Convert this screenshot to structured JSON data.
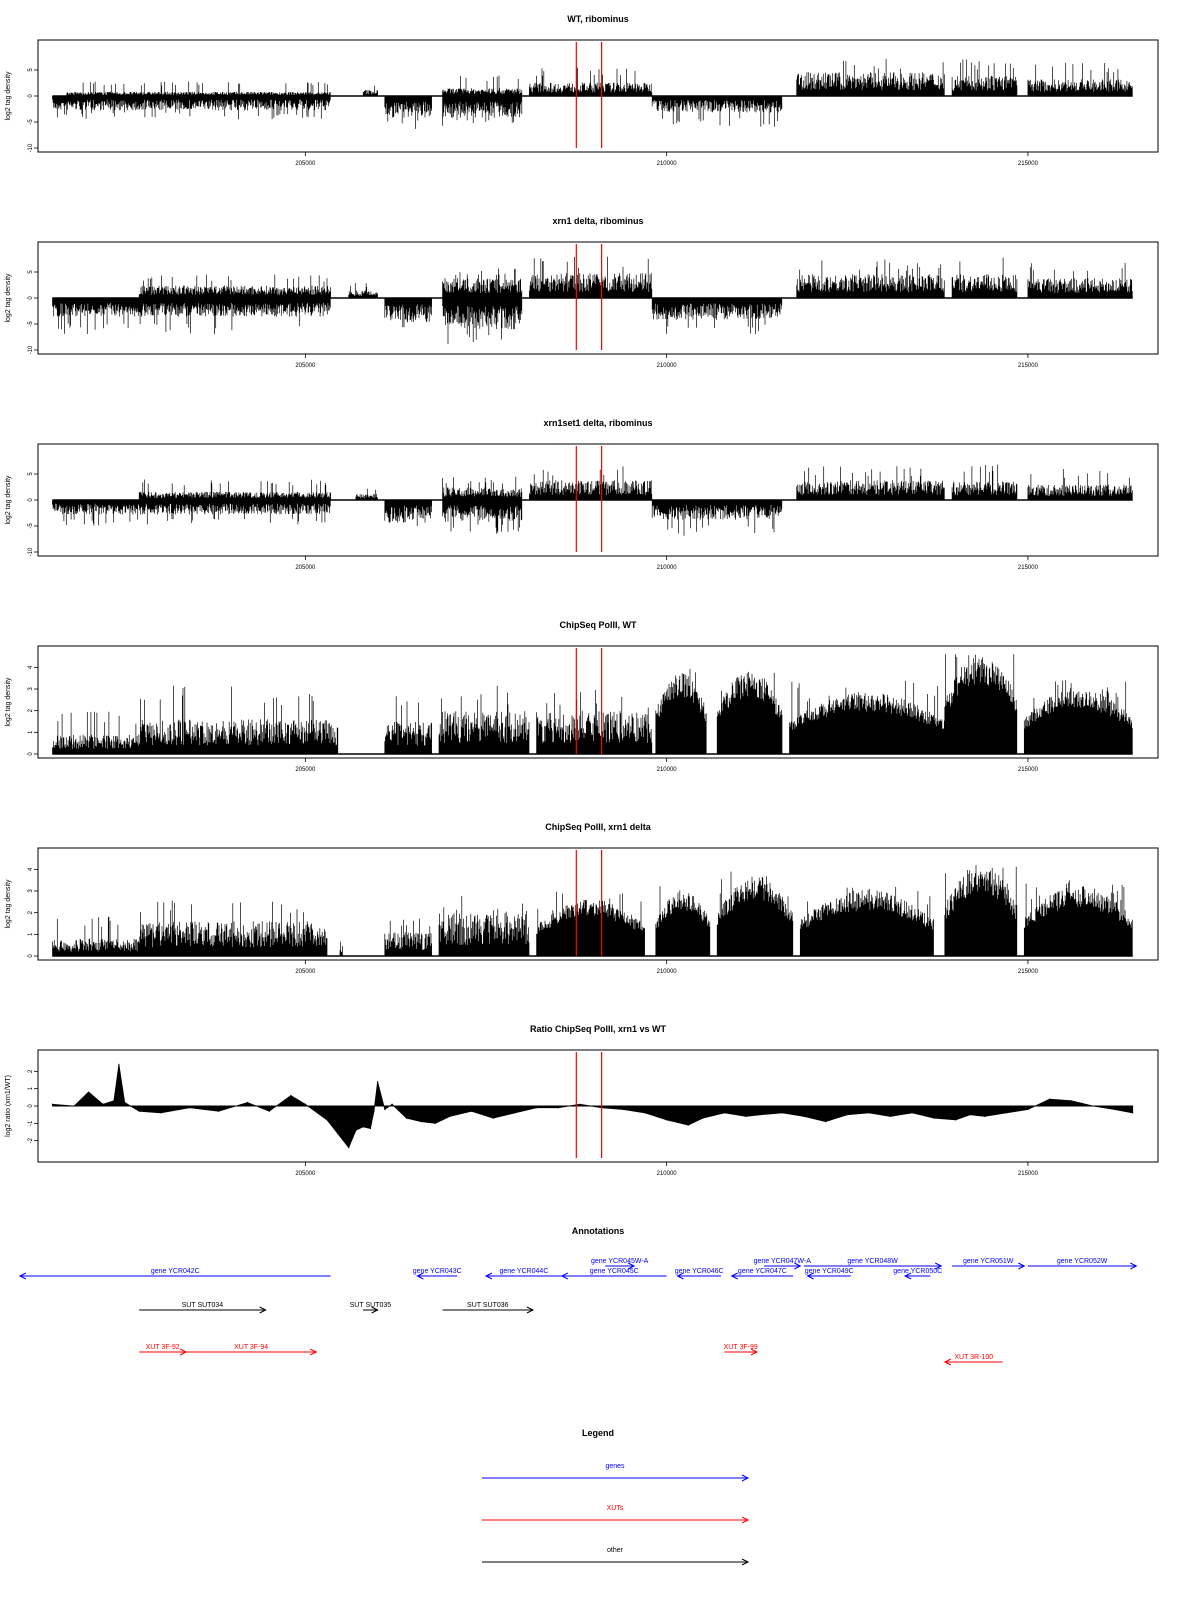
{
  "colors": {
    "track": "#000000",
    "marker": "#ff0000",
    "genes": "#0000ff",
    "xuts": "#ff0000",
    "other": "#000000"
  },
  "chart_data": [
    {
      "type": "area",
      "title": "WT, ribominus",
      "ylabel": "log2 tag density",
      "xlim": [
        201300,
        216800
      ],
      "ylim": [
        -10,
        10
      ],
      "yticks": [
        -10,
        -5,
        0,
        5
      ],
      "xticks": [
        205000,
        210000,
        215000
      ],
      "markers_x": [
        208750,
        209100
      ],
      "segments": [
        {
          "x": [
            201500,
            205350
          ],
          "sign": -1,
          "amp": 2.8,
          "spike": 4.5
        },
        {
          "x": [
            201700,
            205350
          ],
          "sign": 1,
          "amp": 0.8,
          "spike": 2.8
        },
        {
          "x": [
            205800,
            206000
          ],
          "sign": 1,
          "amp": 1.2,
          "spike": 2.6
        },
        {
          "x": [
            206100,
            206750
          ],
          "sign": -1,
          "amp": 4.2,
          "spike": 6.5
        },
        {
          "x": [
            206900,
            208000
          ],
          "sign": -1,
          "amp": 4.2,
          "spike": 6
        },
        {
          "x": [
            206900,
            208000
          ],
          "sign": 1,
          "amp": 1.5,
          "spike": 4
        },
        {
          "x": [
            208100,
            209800
          ],
          "sign": 1,
          "amp": 2.6,
          "spike": 5.5
        },
        {
          "x": [
            209800,
            211600
          ],
          "sign": -1,
          "amp": 3.2,
          "spike": 6
        },
        {
          "x": [
            211800,
            213850
          ],
          "sign": 1,
          "amp": 4.6,
          "spike": 7.5
        },
        {
          "x": [
            213950,
            214850
          ],
          "sign": 1,
          "amp": 4.0,
          "spike": 7
        },
        {
          "x": [
            215000,
            216450
          ],
          "sign": 1,
          "amp": 3.2,
          "spike": 6.5
        }
      ]
    },
    {
      "type": "area",
      "title": "xrn1 delta, ribominus",
      "ylabel": "log2 tag density",
      "xlim": [
        201300,
        216800
      ],
      "ylim": [
        -10,
        10
      ],
      "yticks": [
        -10,
        -5,
        0,
        5
      ],
      "xticks": [
        205000,
        210000,
        215000
      ],
      "markers_x": [
        208750,
        209100
      ],
      "segments": [
        {
          "x": [
            201500,
            205350
          ],
          "sign": -1,
          "amp": 3.6,
          "spike": 7
        },
        {
          "x": [
            202700,
            205350
          ],
          "sign": 1,
          "amp": 2.4,
          "spike": 4.5
        },
        {
          "x": [
            205600,
            206000
          ],
          "sign": 1,
          "amp": 1.5,
          "spike": 3
        },
        {
          "x": [
            206100,
            206750
          ],
          "sign": -1,
          "amp": 4.8,
          "spike": 7
        },
        {
          "x": [
            206900,
            208000
          ],
          "sign": -1,
          "amp": 6.0,
          "spike": 9
        },
        {
          "x": [
            206900,
            208000
          ],
          "sign": 1,
          "amp": 3.8,
          "spike": 6
        },
        {
          "x": [
            208100,
            209800
          ],
          "sign": 1,
          "amp": 4.8,
          "spike": 8
        },
        {
          "x": [
            209800,
            211600
          ],
          "sign": -1,
          "amp": 4.2,
          "spike": 7
        },
        {
          "x": [
            211800,
            213850
          ],
          "sign": 1,
          "amp": 4.6,
          "spike": 7.5
        },
        {
          "x": [
            213950,
            214850
          ],
          "sign": 1,
          "amp": 4.6,
          "spike": 8
        },
        {
          "x": [
            215000,
            216450
          ],
          "sign": 1,
          "amp": 3.8,
          "spike": 7
        }
      ]
    },
    {
      "type": "area",
      "title": "xrn1set1 delta, ribominus",
      "ylabel": "log2 tag density",
      "xlim": [
        201300,
        216800
      ],
      "ylim": [
        -10,
        10
      ],
      "yticks": [
        -10,
        -5,
        0,
        5
      ],
      "xticks": [
        205000,
        210000,
        215000
      ],
      "markers_x": [
        208750,
        209100
      ],
      "segments": [
        {
          "x": [
            201500,
            205350
          ],
          "sign": -1,
          "amp": 2.8,
          "spike": 5
        },
        {
          "x": [
            202700,
            205350
          ],
          "sign": 1,
          "amp": 1.6,
          "spike": 4
        },
        {
          "x": [
            205700,
            206000
          ],
          "sign": 1,
          "amp": 1.2,
          "spike": 2.4
        },
        {
          "x": [
            206100,
            206750
          ],
          "sign": -1,
          "amp": 4.4,
          "spike": 7
        },
        {
          "x": [
            206900,
            208000
          ],
          "sign": -1,
          "amp": 4.2,
          "spike": 6.5
        },
        {
          "x": [
            206900,
            208000
          ],
          "sign": 1,
          "amp": 2.4,
          "spike": 4.5
        },
        {
          "x": [
            208100,
            209800
          ],
          "sign": 1,
          "amp": 3.8,
          "spike": 6.5
        },
        {
          "x": [
            209800,
            211600
          ],
          "sign": -1,
          "amp": 3.8,
          "spike": 7
        },
        {
          "x": [
            211800,
            213850
          ],
          "sign": 1,
          "amp": 3.8,
          "spike": 6.5
        },
        {
          "x": [
            213950,
            214850
          ],
          "sign": 1,
          "amp": 3.6,
          "spike": 7
        },
        {
          "x": [
            215000,
            216450
          ],
          "sign": 1,
          "amp": 3.0,
          "spike": 6
        }
      ]
    },
    {
      "type": "area",
      "title": "ChipSeq PolII, WT",
      "ylabel": "log2 tag density",
      "xlim": [
        201300,
        216800
      ],
      "ylim": [
        0,
        4.8
      ],
      "yticks": [
        0,
        1,
        2,
        3,
        4
      ],
      "xticks": [
        205000,
        210000,
        215000
      ],
      "markers_x": [
        208750,
        209100
      ],
      "segments": [
        {
          "x": [
            201500,
            202700
          ],
          "sign": 1,
          "amp": 0.9,
          "spike": 2
        },
        {
          "x": [
            202700,
            205450
          ],
          "sign": 1,
          "amp": 1.6,
          "spike": 3.2
        },
        {
          "x": [
            206100,
            206750
          ],
          "sign": 1,
          "amp": 1.5,
          "spike": 2.8
        },
        {
          "x": [
            206850,
            208100
          ],
          "sign": 1,
          "amp": 2.0,
          "spike": 3.2
        },
        {
          "x": [
            208200,
            209800
          ],
          "sign": 1,
          "amp": 2.0,
          "spike": 3.0
        },
        {
          "x": [
            209850,
            210550
          ],
          "sign": 1,
          "amp": 3.5,
          "spike": 4.1,
          "shape": "dome"
        },
        {
          "x": [
            210700,
            211600
          ],
          "sign": 1,
          "amp": 3.5,
          "spike": 3.9,
          "shape": "dome"
        },
        {
          "x": [
            211700,
            213850
          ],
          "sign": 1,
          "amp": 2.6,
          "spike": 3.4,
          "shape": "dome"
        },
        {
          "x": [
            213850,
            214850
          ],
          "sign": 1,
          "amp": 4.3,
          "spike": 4.8,
          "shape": "dome"
        },
        {
          "x": [
            214950,
            216450
          ],
          "sign": 1,
          "amp": 2.8,
          "spike": 3.5,
          "shape": "dome"
        }
      ]
    },
    {
      "type": "area",
      "title": "ChipSeq PolII, xrn1 delta",
      "ylabel": "log2 tag density",
      "xlim": [
        201300,
        216800
      ],
      "ylim": [
        0,
        4.8
      ],
      "yticks": [
        0,
        1,
        2,
        3,
        4
      ],
      "xticks": [
        205000,
        210000,
        215000
      ],
      "markers_x": [
        208750,
        209100
      ],
      "segments": [
        {
          "x": [
            201500,
            202700
          ],
          "sign": 1,
          "amp": 0.8,
          "spike": 1.9
        },
        {
          "x": [
            202700,
            205300
          ],
          "sign": 1,
          "amp": 1.6,
          "spike": 2.6
        },
        {
          "x": [
            205480,
            205520
          ],
          "sign": 1,
          "amp": 0.7,
          "spike": 0.8
        },
        {
          "x": [
            206100,
            206750
          ],
          "sign": 1,
          "amp": 1.1,
          "spike": 1.8
        },
        {
          "x": [
            206850,
            208100
          ],
          "sign": 1,
          "amp": 2.0,
          "spike": 2.8
        },
        {
          "x": [
            208200,
            209700
          ],
          "sign": 1,
          "amp": 2.4,
          "spike": 3.0,
          "shape": "dome"
        },
        {
          "x": [
            209850,
            210600
          ],
          "sign": 1,
          "amp": 2.8,
          "spike": 3.3,
          "shape": "dome"
        },
        {
          "x": [
            210700,
            211750
          ],
          "sign": 1,
          "amp": 3.4,
          "spike": 3.9,
          "shape": "dome"
        },
        {
          "x": [
            211850,
            213700
          ],
          "sign": 1,
          "amp": 2.8,
          "spike": 3.3,
          "shape": "dome"
        },
        {
          "x": [
            213850,
            214850
          ],
          "sign": 1,
          "amp": 3.9,
          "spike": 4.3,
          "shape": "dome"
        },
        {
          "x": [
            214950,
            216450
          ],
          "sign": 1,
          "amp": 3.0,
          "spike": 3.6,
          "shape": "dome"
        }
      ]
    },
    {
      "type": "line",
      "title": "Ratio ChipSeq PolII, xrn1 vs WT",
      "ylabel": "log2 ratio (xrn1/WT)",
      "xlim": [
        201300,
        216800
      ],
      "ylim": [
        -3,
        3
      ],
      "yticks": [
        -2,
        -1,
        0,
        1,
        2
      ],
      "xticks": [
        205000,
        210000,
        215000
      ],
      "markers_x": [
        208750,
        209100
      ],
      "x": [
        201500,
        201800,
        202000,
        202200,
        202350,
        202420,
        202500,
        202700,
        203000,
        203400,
        203800,
        204200,
        204500,
        204800,
        205000,
        205300,
        205450,
        205600,
        205700,
        205800,
        205900,
        205950,
        206000,
        206100,
        206200,
        206400,
        206600,
        206800,
        207000,
        207300,
        207600,
        207900,
        208200,
        208500,
        208800,
        209100,
        209400,
        209700,
        210000,
        210300,
        210500,
        210800,
        211100,
        211300,
        211600,
        211900,
        212200,
        212500,
        212800,
        213100,
        213400,
        213700,
        214000,
        214200,
        214400,
        214700,
        215000,
        215300,
        215600,
        215900,
        216200,
        216450
      ],
      "y": [
        0.1,
        0.0,
        0.8,
        0.1,
        0.3,
        2.4,
        0.2,
        -0.3,
        -0.4,
        -0.1,
        -0.3,
        0.2,
        -0.3,
        0.6,
        0.1,
        -0.8,
        -1.6,
        -2.4,
        -1.4,
        -1.2,
        -1.3,
        -0.3,
        1.4,
        -0.2,
        0.1,
        -0.7,
        -0.9,
        -1.0,
        -0.6,
        -0.3,
        -0.7,
        -0.4,
        -0.1,
        -0.1,
        0.1,
        -0.1,
        -0.2,
        -0.4,
        -0.8,
        -1.1,
        -0.7,
        -0.4,
        -0.6,
        -0.5,
        -0.4,
        -0.6,
        -0.9,
        -0.5,
        -0.4,
        -0.6,
        -0.4,
        -0.7,
        -0.8,
        -0.5,
        -0.6,
        -0.4,
        -0.2,
        0.4,
        0.3,
        0.0,
        -0.2,
        -0.4
      ]
    }
  ],
  "annotations": {
    "title": "Annotations",
    "features": [
      {
        "label": "gene YCR042C",
        "start": 201050,
        "end": 205350,
        "strand": "-",
        "type": "gene",
        "row": 0
      },
      {
        "label": "gene YCR043C",
        "start": 206550,
        "end": 207100,
        "strand": "-",
        "type": "gene",
        "row": 0
      },
      {
        "label": "gene YCR044C",
        "start": 207500,
        "end": 208550,
        "strand": "-",
        "type": "gene",
        "row": 0
      },
      {
        "label": "gene YCR045C",
        "start": 208550,
        "end": 210000,
        "strand": "-",
        "type": "gene",
        "row": 0
      },
      {
        "label": "gene YCR045W-A",
        "start": 209150,
        "end": 209550,
        "strand": "+",
        "type": "gene",
        "row": -1
      },
      {
        "label": "gene YCR046C",
        "start": 210150,
        "end": 210750,
        "strand": "-",
        "type": "gene",
        "row": 0
      },
      {
        "label": "gene YCR047C",
        "start": 210900,
        "end": 211750,
        "strand": "-",
        "type": "gene",
        "row": 0
      },
      {
        "label": "gene YCR047W-A",
        "start": 211350,
        "end": 211850,
        "strand": "+",
        "type": "gene",
        "row": -1
      },
      {
        "label": "gene YCR048W",
        "start": 211900,
        "end": 213800,
        "strand": "+",
        "type": "gene",
        "row": -1
      },
      {
        "label": "gene YCR049C",
        "start": 211950,
        "end": 212550,
        "strand": "-",
        "type": "gene",
        "row": 0
      },
      {
        "label": "gene YCR050C",
        "start": 213300,
        "end": 213650,
        "strand": "-",
        "type": "gene",
        "row": 0
      },
      {
        "label": "gene YCR051W",
        "start": 213950,
        "end": 214950,
        "strand": "+",
        "type": "gene",
        "row": -1
      },
      {
        "label": "gene YCR052W",
        "start": 215000,
        "end": 216500,
        "strand": "+",
        "type": "gene",
        "row": -1
      },
      {
        "label": "SUT SUT034",
        "start": 202700,
        "end": 204450,
        "strand": "+",
        "type": "other",
        "row": 1
      },
      {
        "label": "SUT SUT035",
        "start": 205800,
        "end": 206000,
        "strand": "+",
        "type": "other",
        "row": 1
      },
      {
        "label": "SUT SUT036",
        "start": 206900,
        "end": 208150,
        "strand": "+",
        "type": "other",
        "row": 1
      },
      {
        "label": "XUT 3F-92",
        "start": 202700,
        "end": 203350,
        "strand": "+",
        "type": "xut",
        "row": 2
      },
      {
        "label": "XUT 3F-94",
        "start": 203350,
        "end": 205150,
        "strand": "+",
        "type": "xut",
        "row": 2
      },
      {
        "label": "XUT 3F-99",
        "start": 210800,
        "end": 211250,
        "strand": "+",
        "type": "xut",
        "row": 2
      },
      {
        "label": "XUT 3R-100",
        "start": 213850,
        "end": 214650,
        "strand": "-",
        "type": "xut",
        "row": 3
      }
    ]
  },
  "legend": {
    "title": "Legend",
    "items": [
      {
        "label": "genes",
        "type": "gene"
      },
      {
        "label": "XUTs",
        "type": "xut"
      },
      {
        "label": "other",
        "type": "other"
      }
    ]
  }
}
